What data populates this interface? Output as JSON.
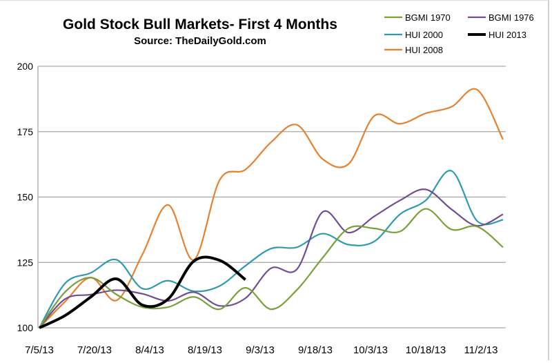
{
  "chart_data": {
    "type": "line",
    "title": "Gold Stock Bull Markets- First 4 Months",
    "subtitle": "Source: TheDailyGold.com",
    "xlabel": "",
    "ylabel": "",
    "ylim": [
      100,
      200
    ],
    "yticks": [
      "100",
      "125",
      "150",
      "175",
      "200"
    ],
    "xtick_labels": [
      "7/5/13",
      "7/20/13",
      "8/4/13",
      "8/19/13",
      "9/3/13",
      "9/18/13",
      "10/3/13",
      "10/18/13",
      "11/2/13"
    ],
    "grid": "horizontal",
    "legend": "top-right",
    "x_step_days": 7,
    "series": [
      {
        "name": "BGMI 1970",
        "color": "#77a03a",
        "values": [
          100,
          113.7,
          119.2,
          112.7,
          107.9,
          107.9,
          111.8,
          107.1,
          115.3,
          107.1,
          114.5,
          126.8,
          138,
          138,
          136.8,
          145.5,
          137.6,
          138.7,
          130.8
        ]
      },
      {
        "name": "BGMI 1976",
        "color": "#6f4d92",
        "values": [
          100,
          111,
          112.7,
          114.4,
          113,
          110.3,
          113.6,
          108.4,
          111.3,
          122.8,
          122.4,
          144.3,
          136.4,
          142.6,
          148.7,
          152.9,
          145.3,
          139,
          143.4
        ]
      },
      {
        "name": "HUI 2000",
        "color": "#2e9ab0",
        "values": [
          100,
          117,
          121,
          126,
          115,
          118,
          114,
          116,
          123.7,
          130.3,
          130.8,
          136,
          131.8,
          133,
          143.4,
          148.7,
          160,
          140.8,
          141.3
        ]
      },
      {
        "name": "HUI 2013",
        "color": "#000000",
        "values": [
          100,
          104.7,
          111.8,
          118.7,
          108.7,
          111,
          125.5,
          125.8,
          118.4
        ]
      },
      {
        "name": "HUI 2008",
        "color": "#e7802e",
        "values": [
          100,
          110,
          119.2,
          110.5,
          128,
          147,
          126,
          156.5,
          160.5,
          171,
          177.6,
          164.5,
          162.6,
          181,
          178,
          182,
          184.5,
          191,
          172
        ]
      }
    ]
  }
}
